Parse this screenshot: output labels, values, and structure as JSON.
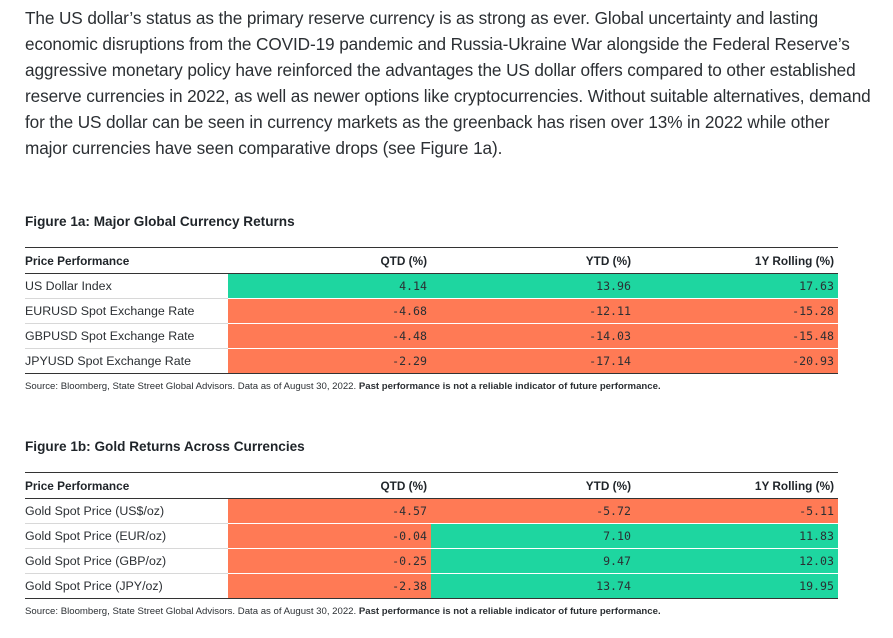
{
  "intro_text": "The US dollar’s status as the primary reserve currency is as strong as ever. Global uncertainty and lasting economic disruptions from the COVID-19 pandemic and Russia-Ukraine War alongside the Federal Reserve’s aggressive monetary policy have reinforced the advantages the US dollar offers compared to other established reserve currencies in 2022, as well as newer options like cryptocurrencies. Without suitable alternatives, demand for the US dollar can be seen in currency markets as the greenback has risen over 13% in 2022 while other major currencies have seen comparative drops (see Figure 1a).",
  "colors": {
    "positive": "#1ed6a0",
    "negative": "#ff7a55"
  },
  "figure1a": {
    "title": "Figure 1a: Major Global Currency Returns",
    "headers": [
      "Price Performance",
      "QTD (%)",
      "YTD (%)",
      "1Y Rolling (%)"
    ],
    "rows": [
      {
        "label": "US Dollar Index",
        "qtd": "4.14",
        "ytd": "13.96",
        "y1": "17.63"
      },
      {
        "label": "EURUSD Spot Exchange Rate",
        "qtd": "-4.68",
        "ytd": "-12.11",
        "y1": "-15.28"
      },
      {
        "label": "GBPUSD Spot Exchange Rate",
        "qtd": "-4.48",
        "ytd": "-14.03",
        "y1": "-15.48"
      },
      {
        "label": "JPYUSD Spot Exchange Rate",
        "qtd": "-2.29",
        "ytd": "-17.14",
        "y1": "-20.93"
      }
    ],
    "source": "Source: Bloomberg, State Street Global Advisors. Data as of August 30, 2022.",
    "disclaimer": "Past performance is not a reliable indicator of future performance."
  },
  "figure1b": {
    "title": "Figure 1b: Gold Returns Across Currencies",
    "headers": [
      "Price Performance",
      "QTD (%)",
      "YTD (%)",
      "1Y Rolling (%)"
    ],
    "rows": [
      {
        "label": "Gold Spot Price (US$/oz)",
        "qtd": "-4.57",
        "ytd": "-5.72",
        "y1": "-5.11"
      },
      {
        "label": "Gold Spot Price (EUR/oz)",
        "qtd": "-0.04",
        "ytd": "7.10",
        "y1": "11.83"
      },
      {
        "label": "Gold Spot Price (GBP/oz)",
        "qtd": "-0.25",
        "ytd": "9.47",
        "y1": "12.03"
      },
      {
        "label": "Gold Spot Price (JPY/oz)",
        "qtd": "-2.38",
        "ytd": "13.74",
        "y1": "19.95"
      }
    ],
    "source": "Source: Bloomberg, State Street Global Advisors. Data as of August 30, 2022.",
    "disclaimer": "Past performance is not a reliable indicator of future performance."
  }
}
